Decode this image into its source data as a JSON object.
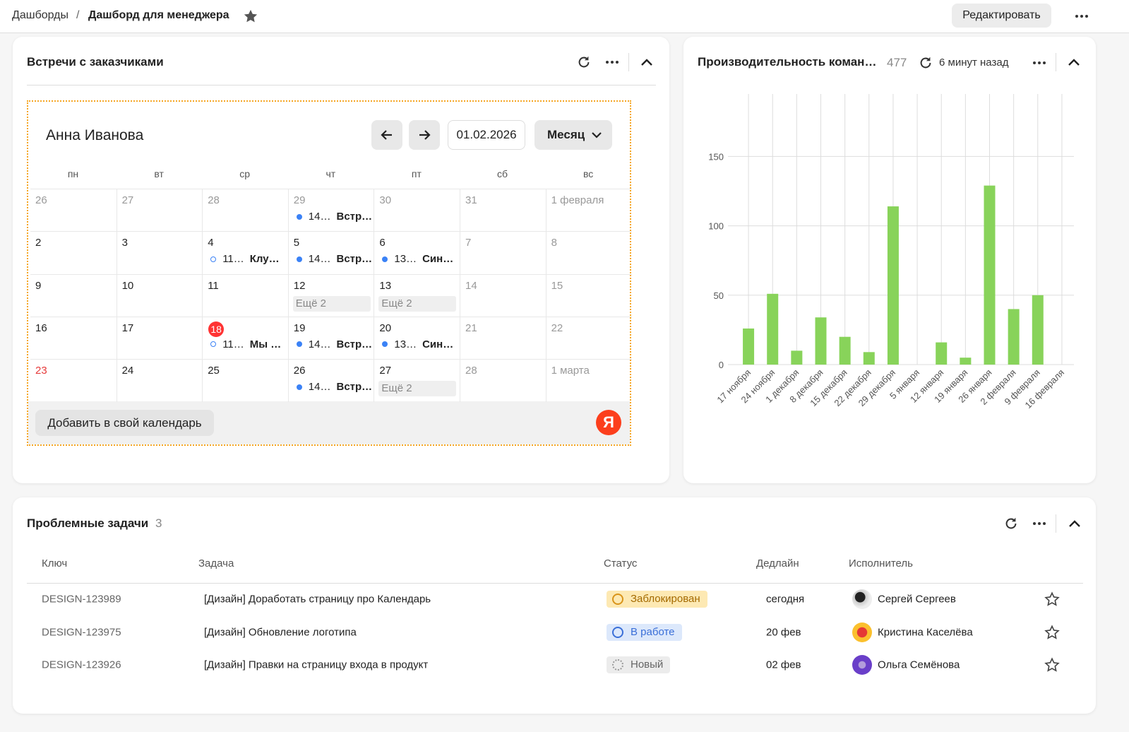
{
  "header": {
    "breadcrumbs": [
      "Дашборды",
      "Дашборд для менеджера"
    ],
    "separator": "/",
    "edit": "Редактировать"
  },
  "calendar": {
    "title": "Встречи с заказчиками",
    "owner": "Анна Иванова",
    "date": "01.02.2026",
    "view": "Месяц",
    "weekdays": [
      "пн",
      "вт",
      "ср",
      "чт",
      "пт",
      "сб",
      "вс"
    ],
    "weeks": [
      [
        {
          "day": "26",
          "muted": true
        },
        {
          "day": "27",
          "muted": true
        },
        {
          "day": "28",
          "muted": true
        },
        {
          "day": "29",
          "muted": true,
          "events": [
            {
              "time": "14…",
              "title": "Встр…",
              "style": "filled"
            }
          ]
        },
        {
          "day": "30",
          "muted": true
        },
        {
          "day": "31",
          "muted": true
        },
        {
          "day": "1 февраля",
          "muted": true
        }
      ],
      [
        {
          "day": "2"
        },
        {
          "day": "3"
        },
        {
          "day": "4",
          "events": [
            {
              "time": "11…",
              "title": "Клу…",
              "style": "outline"
            }
          ]
        },
        {
          "day": "5",
          "events": [
            {
              "time": "14…",
              "title": "Встр…",
              "style": "filled"
            }
          ]
        },
        {
          "day": "6",
          "events": [
            {
              "time": "13…",
              "title": "Син…",
              "style": "filled"
            }
          ]
        },
        {
          "day": "7",
          "muted": true
        },
        {
          "day": "8",
          "muted": true
        }
      ],
      [
        {
          "day": "9"
        },
        {
          "day": "10"
        },
        {
          "day": "11"
        },
        {
          "day": "12",
          "more": "Ещё 2"
        },
        {
          "day": "13",
          "more": "Ещё 2"
        },
        {
          "day": "14",
          "muted": true
        },
        {
          "day": "15",
          "muted": true
        }
      ],
      [
        {
          "day": "16"
        },
        {
          "day": "17"
        },
        {
          "day": "18",
          "today": true,
          "events": [
            {
              "time": "11…",
              "title": "Мы …",
              "style": "outline"
            }
          ]
        },
        {
          "day": "19",
          "events": [
            {
              "time": "14…",
              "title": "Встр…",
              "style": "filled"
            }
          ]
        },
        {
          "day": "20",
          "events": [
            {
              "time": "13…",
              "title": "Син…",
              "style": "filled"
            }
          ]
        },
        {
          "day": "21",
          "muted": true
        },
        {
          "day": "22",
          "muted": true
        }
      ],
      [
        {
          "day": "23",
          "holiday": true
        },
        {
          "day": "24"
        },
        {
          "day": "25"
        },
        {
          "day": "26",
          "events": [
            {
              "time": "14…",
              "title": "Встр…",
              "style": "filled"
            }
          ]
        },
        {
          "day": "27",
          "more": "Ещё 2"
        },
        {
          "day": "28",
          "muted": true
        },
        {
          "day": "1 марта",
          "muted": true
        }
      ]
    ],
    "add_button": "Добавить в свой календарь",
    "logo": "Я"
  },
  "chart_widget": {
    "title": "Производительность коман…",
    "count": 477,
    "updated": "6 минут назад"
  },
  "chart_data": {
    "type": "bar",
    "categories": [
      "17 ноября",
      "24 ноября",
      "1 декабря",
      "8 декабря",
      "15 декабря",
      "22 декабря",
      "29 декабря",
      "5 января",
      "12 января",
      "19 января",
      "26 января",
      "2 февраля",
      "9 февраля",
      "16 февраля"
    ],
    "values": [
      26,
      51,
      10,
      34,
      20,
      9,
      114,
      0,
      16,
      5,
      129,
      40,
      50,
      0
    ],
    "color": "#88d35a",
    "ylim": [
      0,
      195
    ],
    "yticks": [
      0,
      50,
      100,
      150
    ],
    "grid": true
  },
  "tasks": {
    "title": "Проблемные задачи",
    "count": 3,
    "columns": [
      "Ключ",
      "Задача",
      "Статус",
      "Дедлайн",
      "Исполнитель"
    ],
    "rows": [
      {
        "key": "DESIGN-123989",
        "task": "[Дизайн] Доработать страницу про Календарь",
        "status": "Заблокирован",
        "status_kind": "blocked",
        "deadline": "сегодня",
        "assignee": "Сергей Сергеев"
      },
      {
        "key": "DESIGN-123975",
        "task": "[Дизайн] Обновление логотипа",
        "status": "В работе",
        "status_kind": "progress",
        "deadline": "20 фев",
        "assignee": "Кристина Каселёва"
      },
      {
        "key": "DESIGN-123926",
        "task": "[Дизайн] Правки на страницу входа в продукт",
        "status": "Новый",
        "status_kind": "new",
        "deadline": "02 фев",
        "assignee": "Ольга Семёнова"
      }
    ]
  }
}
